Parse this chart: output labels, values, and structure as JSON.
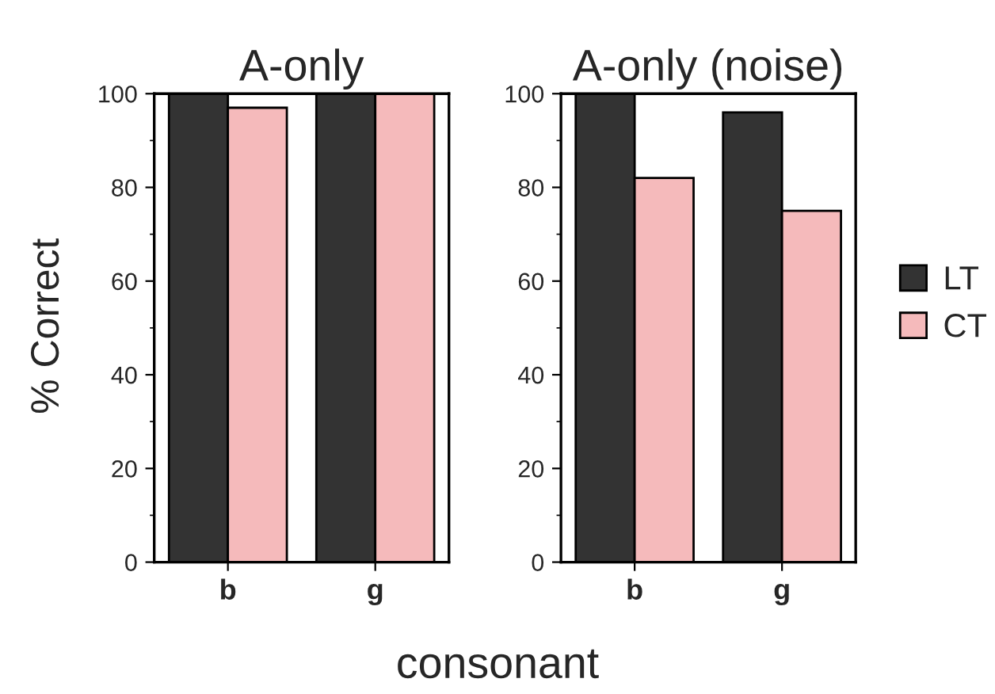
{
  "chart_data": [
    {
      "type": "bar",
      "title": "A-only",
      "xlabel": "consonant",
      "ylabel": "% Correct",
      "categories": [
        "b",
        "g"
      ],
      "series": [
        {
          "color": "#333333",
          "values": [
            100,
            100
          ]
        },
        {
          "color": "#f5babb",
          "values": [
            97,
            100
          ]
        }
      ],
      "ylim": [
        0,
        100
      ],
      "yticks": [
        0,
        20,
        40,
        60,
        80,
        100
      ],
      "grid": false
    },
    {
      "type": "bar",
      "title": "A-only (noise)",
      "categories": [
        "b",
        "g"
      ],
      "series": [
        {
          "name": "LT",
          "color": "#333333",
          "values": [
            100,
            96
          ]
        },
        {
          "name": "CT",
          "color": "#f5babb",
          "values": [
            82,
            75
          ]
        }
      ],
      "ylim": [
        0,
        100
      ],
      "yticks": [
        0,
        20,
        40,
        60,
        80,
        100
      ],
      "grid": false,
      "legend": "right"
    }
  ]
}
